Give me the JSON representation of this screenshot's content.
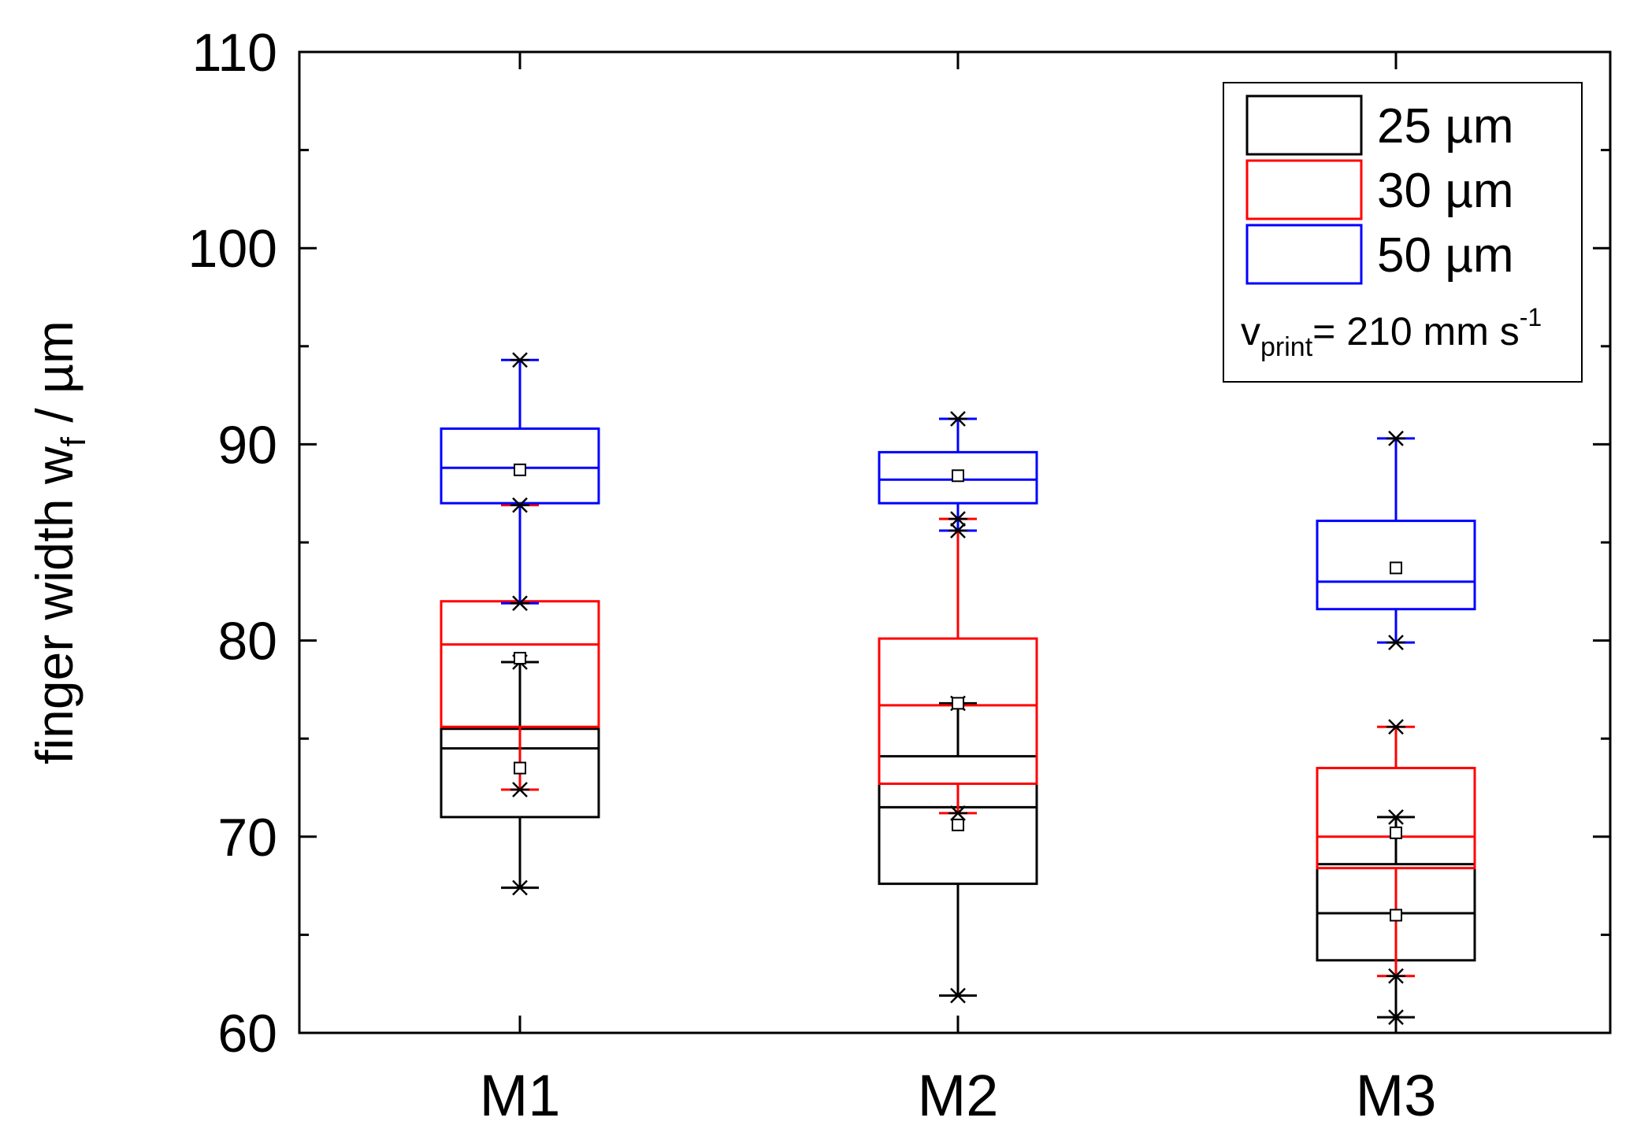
{
  "chart_data": {
    "type": "box",
    "title": "",
    "xlabel": "",
    "ylabel": {
      "text": "finger width w",
      "sub": "f",
      "unit": " / µm"
    },
    "ylim": [
      60,
      110
    ],
    "yticks": [
      "60",
      "70",
      "80",
      "90",
      "100",
      "110"
    ],
    "categories": [
      "M1",
      "M2",
      "M3"
    ],
    "series": [
      {
        "name": "25 µm",
        "color": "#000000",
        "boxes": [
          {
            "category": "M1",
            "min": 67.4,
            "q1": 71.0,
            "median": 74.5,
            "q3": 75.5,
            "max": 78.9,
            "mean": 73.5,
            "whisker_low": 67.4,
            "whisker_high": 78.9
          },
          {
            "category": "M2",
            "min": 61.9,
            "q1": 67.6,
            "median": 71.5,
            "q3": 74.1,
            "max": 76.8,
            "mean": 70.6,
            "whisker_low": 61.9,
            "whisker_high": 76.8
          },
          {
            "category": "M3",
            "min": 60.8,
            "q1": 63.7,
            "median": 66.1,
            "q3": 68.6,
            "max": 71.0,
            "mean": 66.0,
            "whisker_low": 60.8,
            "whisker_high": 71.0
          }
        ]
      },
      {
        "name": "30 µm",
        "color": "#ff0000",
        "boxes": [
          {
            "category": "M1",
            "min": 72.4,
            "q1": 75.6,
            "median": 79.8,
            "q3": 82.0,
            "max": 86.9,
            "mean": 79.1,
            "whisker_low": 72.4,
            "whisker_high": 86.9
          },
          {
            "category": "M2",
            "min": 71.2,
            "q1": 72.7,
            "median": 76.7,
            "q3": 80.1,
            "max": 86.2,
            "mean": 76.8,
            "whisker_low": 71.2,
            "whisker_high": 86.2
          },
          {
            "category": "M3",
            "min": 62.9,
            "q1": 68.4,
            "median": 70.0,
            "q3": 73.5,
            "max": 75.6,
            "mean": 70.2,
            "whisker_low": 62.9,
            "whisker_high": 75.6
          }
        ]
      },
      {
        "name": "50 µm",
        "color": "#0000ff",
        "boxes": [
          {
            "category": "M1",
            "min": 81.9,
            "q1": 87.0,
            "median": 88.8,
            "q3": 90.8,
            "max": 94.3,
            "mean": 88.7,
            "whisker_low": 81.9,
            "whisker_high": 94.3
          },
          {
            "category": "M2",
            "min": 85.6,
            "q1": 87.0,
            "median": 88.2,
            "q3": 89.6,
            "max": 91.3,
            "mean": 88.4,
            "whisker_low": 85.6,
            "whisker_high": 91.3
          },
          {
            "category": "M3",
            "min": 79.9,
            "q1": 81.6,
            "median": 83.0,
            "q3": 86.1,
            "max": 90.3,
            "mean": 83.7,
            "whisker_low": 79.9,
            "whisker_high": 90.3
          }
        ]
      }
    ],
    "legend": {
      "position": "top-right",
      "entries": [
        "25 µm",
        "30 µm",
        "50 µm"
      ],
      "note": {
        "prefix": "v",
        "sub": "print",
        "main": "= 210 mm s",
        "sup": "-1"
      }
    }
  }
}
